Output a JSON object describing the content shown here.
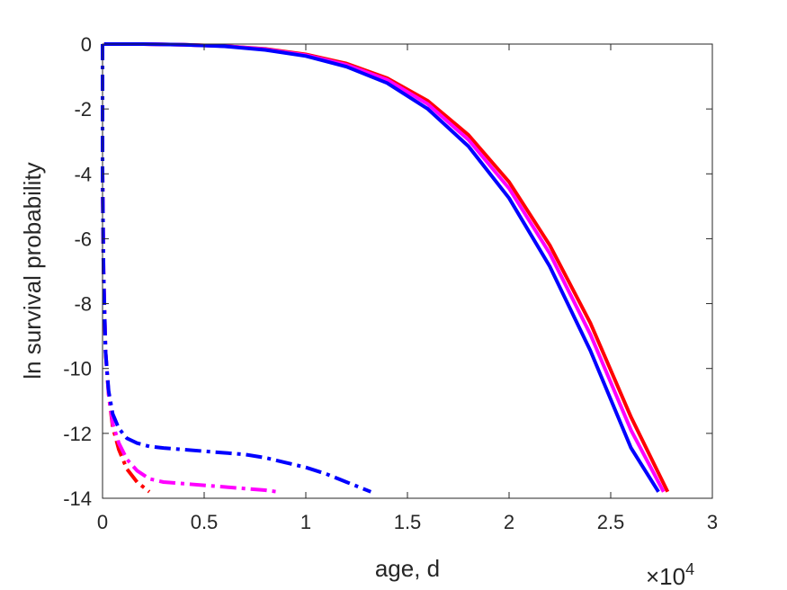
{
  "chart_data": {
    "type": "line",
    "title": "",
    "xlabel": "age, d",
    "ylabel": "ln survival probability",
    "x_exponent_label": "×10",
    "x_exponent_power": "4",
    "xlim": [
      0,
      30000
    ],
    "ylim": [
      -14,
      0
    ],
    "x_ticks": [
      0,
      5000,
      10000,
      15000,
      20000,
      25000,
      30000
    ],
    "x_tick_labels": [
      "0",
      "0.5",
      "1",
      "1.5",
      "2",
      "2.5",
      "3"
    ],
    "y_ticks": [
      0,
      -2,
      -4,
      -6,
      -8,
      -10,
      -12,
      -14
    ],
    "y_tick_labels": [
      "0",
      "-2",
      "-4",
      "-6",
      "-8",
      "-10",
      "-12",
      "-14"
    ],
    "grid": false,
    "series": [
      {
        "style": "solid",
        "color": "#ff0000",
        "x": [
          80,
          2000,
          4000,
          6000,
          8000,
          10000,
          12000,
          14000,
          16000,
          18000,
          20000,
          22000,
          24000,
          26000,
          27800
        ],
        "y": [
          0,
          0,
          -0.02,
          -0.06,
          -0.15,
          -0.32,
          -0.6,
          -1.05,
          -1.75,
          -2.8,
          -4.25,
          -6.2,
          -8.6,
          -11.5,
          -13.8
        ]
      },
      {
        "style": "solid",
        "color": "#ff00ff",
        "x": [
          80,
          2000,
          4000,
          6000,
          8000,
          10000,
          12000,
          14000,
          16000,
          18000,
          20000,
          22000,
          24000,
          26000,
          27600
        ],
        "y": [
          0,
          0,
          -0.02,
          -0.06,
          -0.16,
          -0.34,
          -0.64,
          -1.1,
          -1.85,
          -2.95,
          -4.45,
          -6.45,
          -8.95,
          -11.9,
          -13.8
        ]
      },
      {
        "style": "solid",
        "color": "#0000ff",
        "x": [
          80,
          2000,
          4000,
          6000,
          8000,
          10000,
          12000,
          14000,
          16000,
          18000,
          20000,
          22000,
          24000,
          26000,
          27350
        ],
        "y": [
          0,
          0,
          -0.02,
          -0.07,
          -0.18,
          -0.37,
          -0.7,
          -1.2,
          -2.0,
          -3.15,
          -4.75,
          -6.85,
          -9.45,
          -12.45,
          -13.8
        ]
      },
      {
        "style": "dashdot",
        "color": "#ff0000",
        "x": [
          0,
          0,
          50,
          150,
          300,
          500,
          800,
          1200,
          1700,
          2300
        ],
        "y": [
          0,
          -4,
          -7,
          -9.5,
          -10.8,
          -11.8,
          -12.5,
          -13.1,
          -13.5,
          -13.8
        ]
      },
      {
        "style": "dashdot",
        "color": "#ff00ff",
        "x": [
          0,
          0,
          50,
          150,
          300,
          500,
          800,
          1200,
          1700,
          2300,
          3000,
          4000,
          5000,
          6000,
          7000,
          8000,
          8600
        ],
        "y": [
          0,
          -4,
          -7,
          -9.5,
          -10.8,
          -11.7,
          -12.3,
          -12.8,
          -13.15,
          -13.4,
          -13.5,
          -13.55,
          -13.6,
          -13.65,
          -13.7,
          -13.75,
          -13.8
        ]
      },
      {
        "style": "dashdot",
        "color": "#0000ff",
        "x": [
          0,
          0,
          50,
          150,
          300,
          500,
          800,
          1200,
          1700,
          2300,
          3000,
          4000,
          5000,
          6000,
          7000,
          8000,
          9000,
          10000,
          11000,
          12000,
          13200
        ],
        "y": [
          0,
          -4,
          -7,
          -9.5,
          -10.7,
          -11.4,
          -11.85,
          -12.15,
          -12.3,
          -12.4,
          -12.45,
          -12.5,
          -12.55,
          -12.6,
          -12.65,
          -12.75,
          -12.9,
          -13.05,
          -13.25,
          -13.5,
          -13.8
        ]
      }
    ]
  }
}
